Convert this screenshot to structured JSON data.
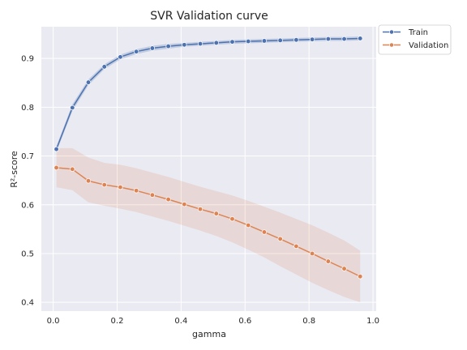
{
  "chart_data": {
    "type": "line",
    "title": "SVR Validation curve",
    "xlabel": "gamma",
    "ylabel": "R²-score",
    "xlim": [
      -0.037,
      1.01
    ],
    "ylim": [
      0.382,
      0.965
    ],
    "x_ticks": [
      0.0,
      0.2,
      0.4,
      0.6,
      0.8,
      1.0
    ],
    "x_tick_labels": [
      "0.0",
      "0.2",
      "0.4",
      "0.6",
      "0.8",
      "1.0"
    ],
    "y_ticks": [
      0.4,
      0.5,
      0.6,
      0.7,
      0.8,
      0.9
    ],
    "y_tick_labels": [
      "0.4",
      "0.5",
      "0.6",
      "0.7",
      "0.8",
      "0.9"
    ],
    "grid": true,
    "legend_placement": "outside-top-right",
    "x": [
      0.01,
      0.06,
      0.11,
      0.16,
      0.21,
      0.26,
      0.31,
      0.36,
      0.41,
      0.46,
      0.51,
      0.56,
      0.61,
      0.66,
      0.71,
      0.76,
      0.81,
      0.86,
      0.91,
      0.96
    ],
    "series": [
      {
        "name": "Train",
        "color": "#4c72b0",
        "marker": "circle",
        "values": [
          0.714,
          0.799,
          0.851,
          0.883,
          0.903,
          0.914,
          0.921,
          0.925,
          0.928,
          0.93,
          0.932,
          0.934,
          0.935,
          0.936,
          0.937,
          0.938,
          0.939,
          0.94,
          0.94,
          0.941
        ],
        "band_lower": [
          0.708,
          0.792,
          0.845,
          0.878,
          0.898,
          0.909,
          0.916,
          0.92,
          0.924,
          0.926,
          0.928,
          0.93,
          0.931,
          0.932,
          0.933,
          0.934,
          0.935,
          0.936,
          0.936,
          0.937
        ],
        "band_upper": [
          0.72,
          0.806,
          0.857,
          0.888,
          0.908,
          0.919,
          0.926,
          0.93,
          0.932,
          0.934,
          0.936,
          0.938,
          0.939,
          0.94,
          0.941,
          0.942,
          0.943,
          0.944,
          0.944,
          0.945
        ]
      },
      {
        "name": "Validation",
        "color": "#dd8452",
        "marker": "circle",
        "values": [
          0.676,
          0.673,
          0.649,
          0.641,
          0.636,
          0.629,
          0.62,
          0.611,
          0.601,
          0.591,
          0.582,
          0.571,
          0.558,
          0.544,
          0.53,
          0.515,
          0.5,
          0.484,
          0.469,
          0.453
        ],
        "band_lower": [
          0.636,
          0.63,
          0.605,
          0.598,
          0.592,
          0.585,
          0.576,
          0.567,
          0.557,
          0.547,
          0.536,
          0.523,
          0.508,
          0.492,
          0.474,
          0.457,
          0.44,
          0.425,
          0.411,
          0.4
        ],
        "band_upper": [
          0.716,
          0.716,
          0.697,
          0.686,
          0.682,
          0.675,
          0.666,
          0.657,
          0.647,
          0.637,
          0.628,
          0.619,
          0.608,
          0.596,
          0.584,
          0.571,
          0.558,
          0.543,
          0.527,
          0.506
        ]
      }
    ]
  }
}
